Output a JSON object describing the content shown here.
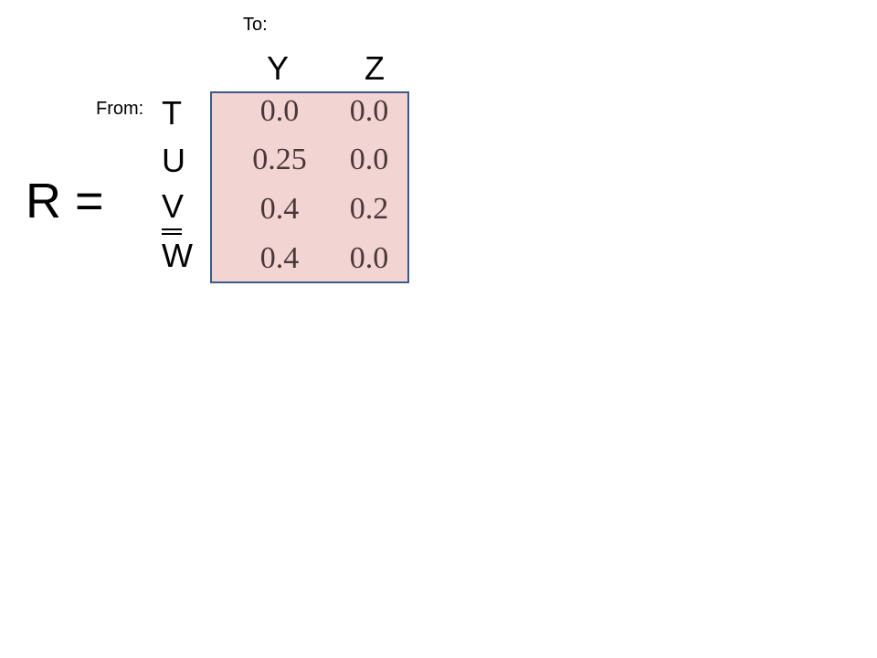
{
  "to_label": "To:",
  "from_label": "From:",
  "matrix_label": "R =",
  "columns": [
    "Y",
    "Z"
  ],
  "rows": [
    "T",
    "U",
    "V",
    "W"
  ],
  "values": [
    [
      "0.0",
      "0.0"
    ],
    [
      "0.25",
      "0.0"
    ],
    [
      "0.4",
      "0.2"
    ],
    [
      "0.4",
      "0.0"
    ]
  ],
  "colors": {
    "matrix_fill": "#f2d4d2",
    "matrix_border": "#3b5a8a",
    "value_text": "#4a3838"
  }
}
